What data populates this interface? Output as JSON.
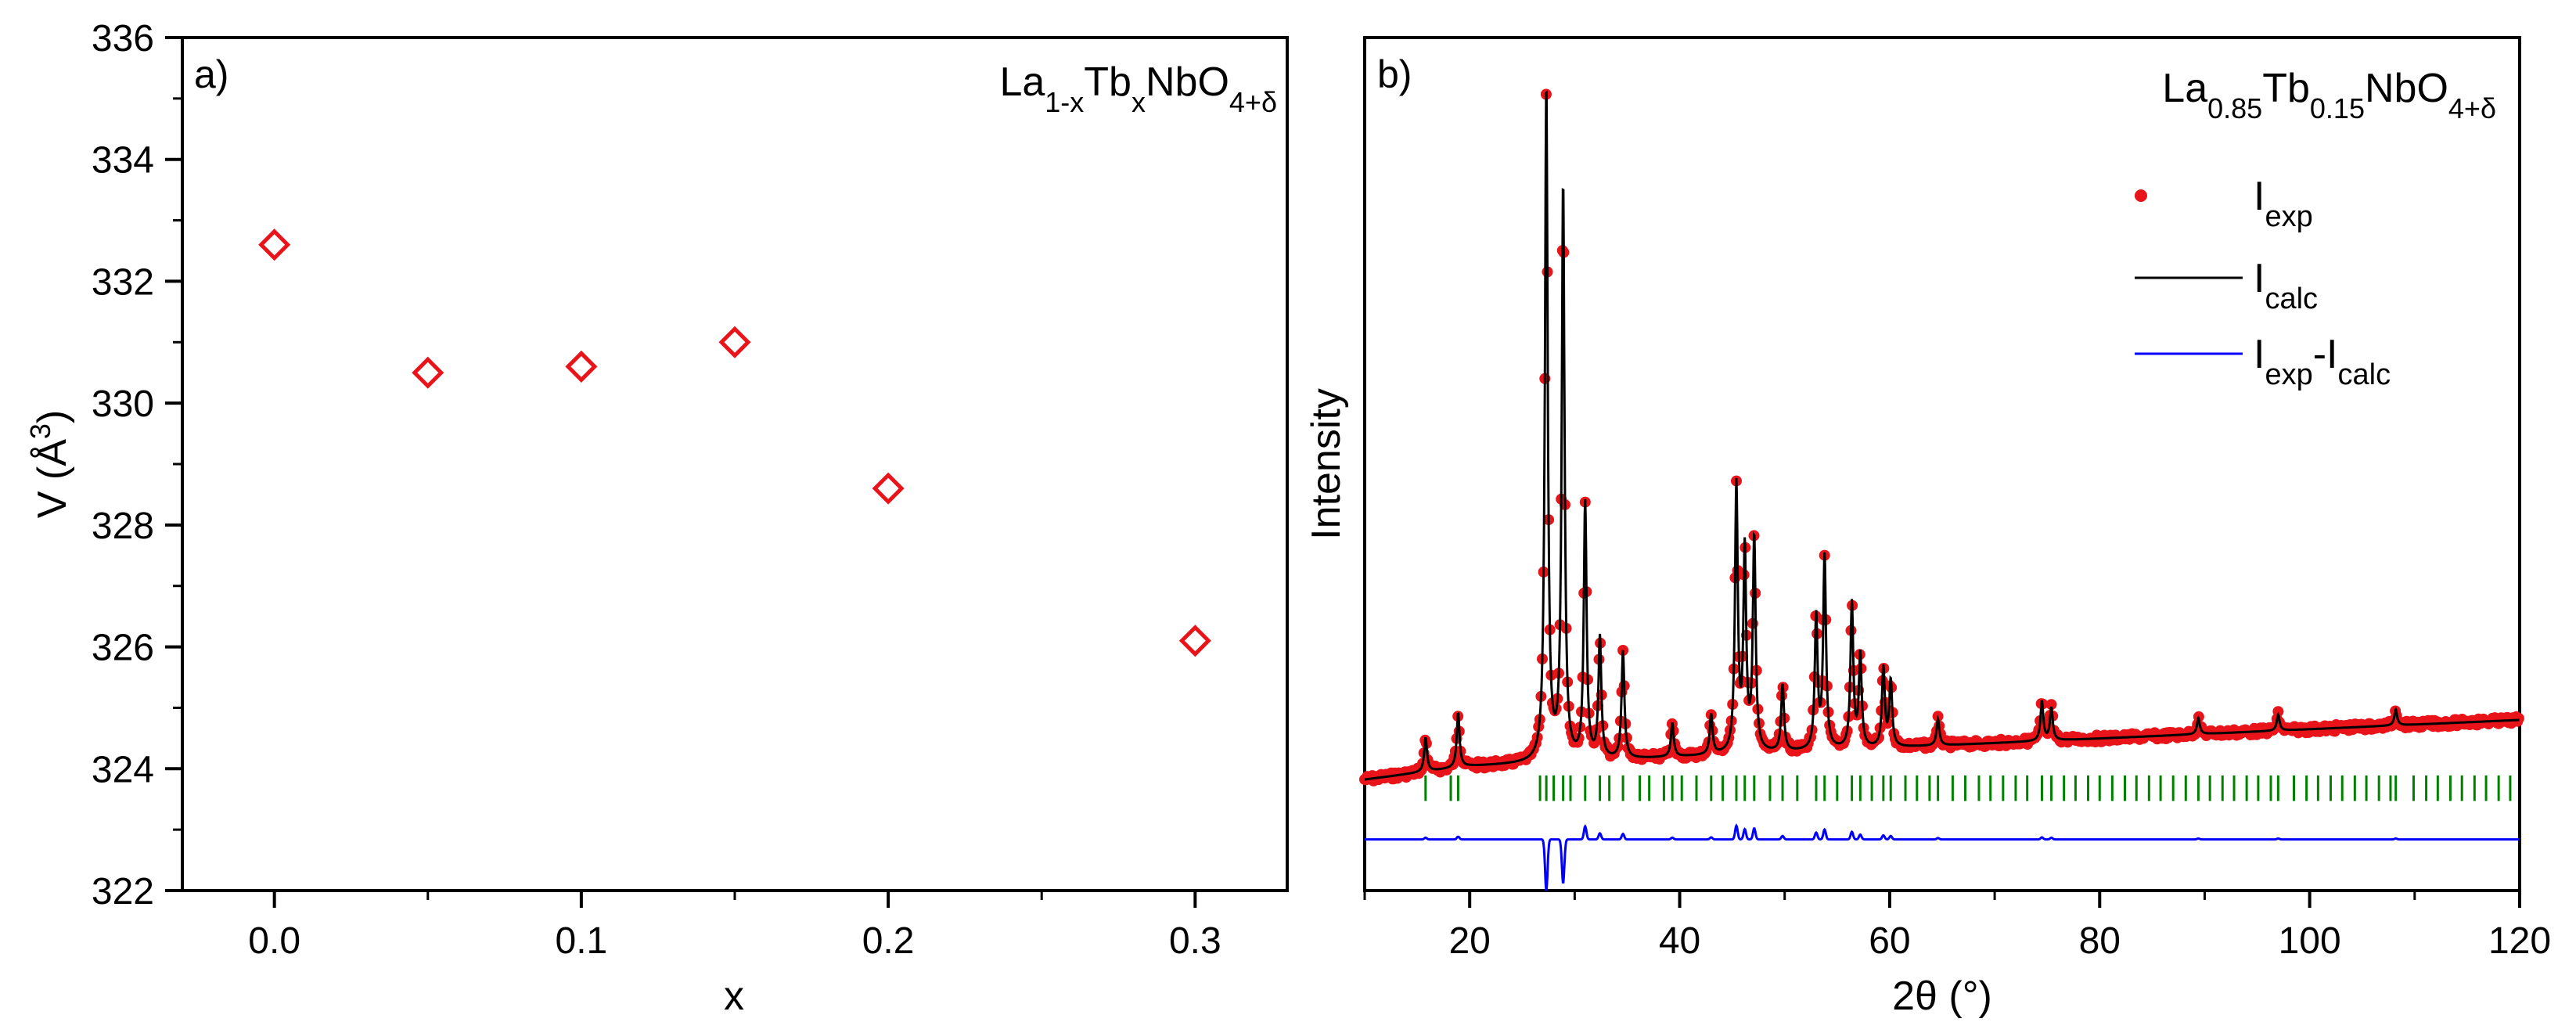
{
  "chart_data": [
    {
      "panel": "a)",
      "type": "scatter",
      "title_parts": {
        "base1": "La",
        "sub1": "1-x",
        "base2": "Tb",
        "sub2": "x",
        "base3": "NbO",
        "sub3": "4+δ"
      },
      "xlabel": "x",
      "ylabel_parts": {
        "base": "V (Å",
        "sup": "3",
        "close": ")"
      },
      "xlim": [
        -0.03,
        0.33
      ],
      "ylim": [
        322,
        336
      ],
      "xticks": [
        "0.0",
        "0.1",
        "0.2",
        "0.3"
      ],
      "yticks": [
        "322",
        "324",
        "326",
        "328",
        "330",
        "332",
        "334",
        "336"
      ],
      "marker": "diamond-open",
      "color": "#e8141a",
      "points": [
        {
          "x": 0.0,
          "y": 332.6
        },
        {
          "x": 0.05,
          "y": 330.5
        },
        {
          "x": 0.1,
          "y": 330.6
        },
        {
          "x": 0.15,
          "y": 331.0
        },
        {
          "x": 0.2,
          "y": 328.6
        },
        {
          "x": 0.3,
          "y": 326.1
        }
      ]
    },
    {
      "panel": "b)",
      "type": "line",
      "title_parts": {
        "base1": "La",
        "sub1": "0.85",
        "base2": "Tb",
        "sub2": "0.15",
        "base3": "NbO",
        "sub3": "4+δ"
      },
      "xlabel": "2θ (°)",
      "ylabel": "Intensity",
      "xlim": [
        10,
        120
      ],
      "xticks": [
        "20",
        "40",
        "60",
        "80",
        "100",
        "120"
      ],
      "legend": {
        "position": "top-right",
        "entries": [
          {
            "base": "I",
            "sub": "exp",
            "kind": "dot",
            "color": "#e8141a"
          },
          {
            "base": "I",
            "sub": "calc",
            "kind": "line",
            "color": "#000000"
          },
          {
            "base1": "I",
            "sub1": "exp",
            "mid": "-I",
            "sub2": "calc",
            "kind": "line",
            "color": "#0000ff"
          }
        ]
      },
      "colors": {
        "exp": "#e8141a",
        "calc": "#000000",
        "diff": "#0000ff",
        "bragg": "#008000"
      },
      "background": {
        "start": 0.86,
        "end": 0.8
      },
      "peaks": [
        {
          "x": 15.8,
          "h": 0.05
        },
        {
          "x": 18.9,
          "h": 0.08
        },
        {
          "x": 27.3,
          "h": 1.0
        },
        {
          "x": 28.9,
          "h": 0.85
        },
        {
          "x": 31.0,
          "h": 0.38
        },
        {
          "x": 32.4,
          "h": 0.18
        },
        {
          "x": 34.6,
          "h": 0.16
        },
        {
          "x": 39.3,
          "h": 0.05
        },
        {
          "x": 43.0,
          "h": 0.06
        },
        {
          "x": 45.4,
          "h": 0.4
        },
        {
          "x": 46.2,
          "h": 0.3
        },
        {
          "x": 47.1,
          "h": 0.32
        },
        {
          "x": 49.8,
          "h": 0.1
        },
        {
          "x": 53.0,
          "h": 0.2
        },
        {
          "x": 53.8,
          "h": 0.29
        },
        {
          "x": 56.4,
          "h": 0.22
        },
        {
          "x": 57.2,
          "h": 0.14
        },
        {
          "x": 59.4,
          "h": 0.12
        },
        {
          "x": 60.1,
          "h": 0.1
        },
        {
          "x": 64.6,
          "h": 0.04
        },
        {
          "x": 74.5,
          "h": 0.06
        },
        {
          "x": 75.4,
          "h": 0.05
        },
        {
          "x": 89.4,
          "h": 0.025
        },
        {
          "x": 97.0,
          "h": 0.025
        },
        {
          "x": 108.2,
          "h": 0.025
        }
      ],
      "bragg_positions": [
        15.8,
        18.2,
        18.9,
        26.7,
        27.3,
        28.0,
        28.9,
        29.6,
        31.0,
        32.4,
        33.3,
        34.6,
        36.2,
        37.1,
        38.5,
        39.3,
        40.2,
        41.6,
        43.0,
        44.1,
        45.4,
        46.2,
        47.1,
        48.6,
        49.8,
        51.2,
        53.0,
        53.8,
        55.0,
        56.4,
        57.2,
        58.3,
        59.4,
        60.1,
        61.5,
        62.6,
        63.8,
        64.6,
        66.0,
        67.2,
        68.5,
        69.6,
        70.8,
        72.0,
        73.1,
        74.5,
        75.4,
        76.6,
        77.7,
        78.9,
        80.0,
        81.2,
        82.4,
        83.5,
        84.7,
        85.8,
        87.0,
        88.2,
        89.4,
        90.5,
        91.7,
        92.8,
        94.0,
        95.1,
        96.3,
        97.0,
        98.5,
        99.7,
        100.8,
        102.0,
        103.1,
        104.3,
        105.4,
        106.6,
        107.7,
        108.2,
        109.9,
        111.1,
        112.2,
        113.4,
        114.5,
        115.7,
        116.8,
        118.0,
        119.1
      ]
    }
  ]
}
